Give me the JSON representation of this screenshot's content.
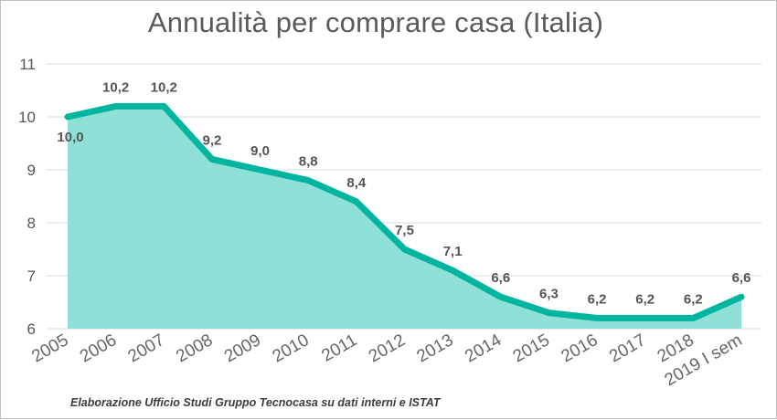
{
  "chart_data": {
    "type": "area",
    "title": "Annualità per comprare casa (Italia)",
    "categories": [
      "2005",
      "2006",
      "2007",
      "2008",
      "2009",
      "2010",
      "2011",
      "2012",
      "2013",
      "2014",
      "2015",
      "2016",
      "2017",
      "2018",
      "2019 I sem"
    ],
    "series": [
      {
        "values": [
          10.0,
          10.2,
          10.2,
          9.2,
          9.0,
          8.8,
          8.4,
          7.5,
          7.1,
          6.6,
          6.3,
          6.2,
          6.2,
          6.2,
          6.6
        ],
        "labels": [
          "10,0",
          "10,2",
          "10,2",
          "9,2",
          "9,0",
          "8,8",
          "8,4",
          "7,5",
          "7,1",
          "6,6",
          "6,3",
          "6,2",
          "6,2",
          "6,2",
          "6,6"
        ]
      }
    ],
    "yticks": [
      "6",
      "7",
      "8",
      "9",
      "10",
      "11"
    ],
    "ylim": [
      6,
      11
    ],
    "grid": true,
    "line_color": "#00b5a0",
    "fill_color": "#8fe0d6",
    "source_note": "Elaborazione Ufficio Studi Gruppo Tecnocasa su dati interni e ISTAT"
  }
}
